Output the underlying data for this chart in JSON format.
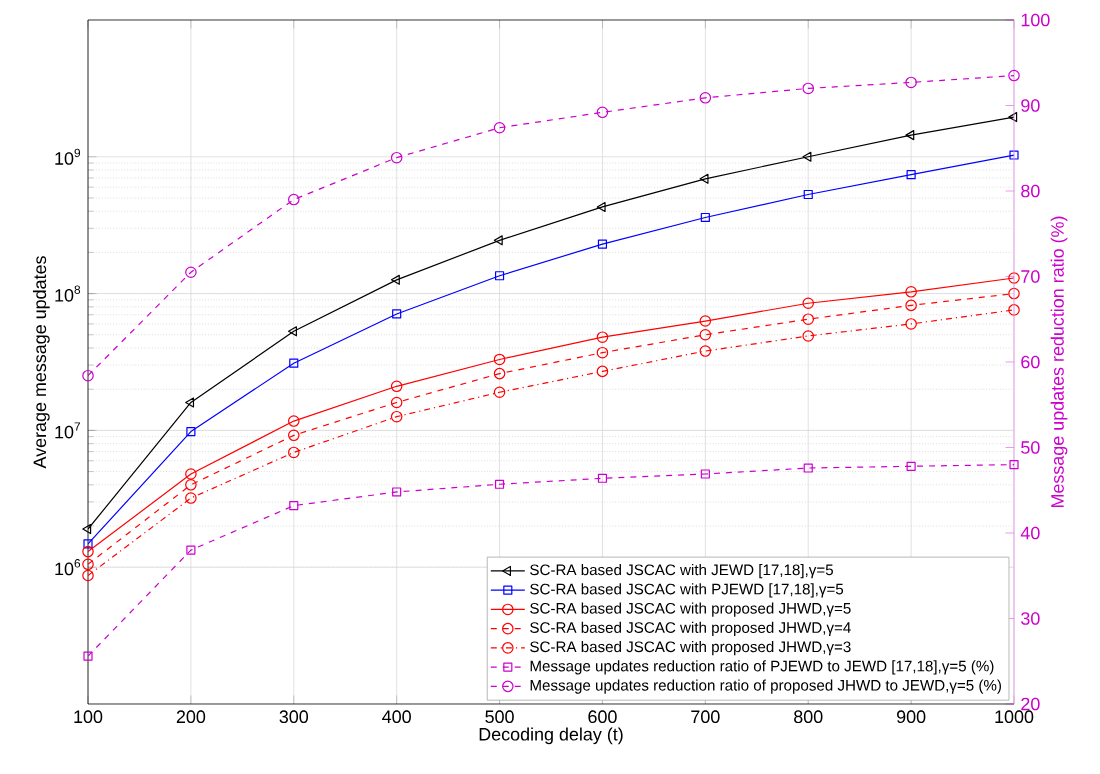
{
  "chart_data": {
    "type": "line",
    "xlabel": "Decoding delay (t)",
    "ylabel": "Average message updates",
    "y2label": "Message updates reduction ratio (%)",
    "x": [
      100,
      200,
      300,
      400,
      500,
      600,
      700,
      800,
      900,
      1000
    ],
    "xlim": [
      100,
      1000
    ],
    "xticks": [
      100,
      200,
      300,
      400,
      500,
      600,
      700,
      800,
      900,
      1000
    ],
    "log": "y",
    "ylim": [
      100000,
      10000000000
    ],
    "yticks": [
      {
        "value": 1000000,
        "label": "10$^{6}$"
      },
      {
        "value": 10000000,
        "label": "10$^{7}$"
      },
      {
        "value": 100000000,
        "label": "10$^{8}$"
      },
      {
        "value": 1000000000,
        "label": "10$^{9}$"
      }
    ],
    "y2lim": [
      20,
      100
    ],
    "y2ticks": [
      20,
      30,
      40,
      50,
      60,
      70,
      80,
      90,
      100
    ],
    "grid": true,
    "legend": "bottom right",
    "series": [
      {
        "name": "SC-RA based JSCAC with JEWD [17,18],γ=5",
        "color": "#000000",
        "marker": "triangle",
        "line_style": "solid",
        "values": [
          1900000,
          16000000,
          53000000,
          126000000,
          245000000,
          430000000,
          690000000,
          1000000000,
          1440000000,
          1950000000
        ]
      },
      {
        "name": "SC-RA based JSCAC with PJEWD [17,18],γ=5",
        "color": "#0000ff",
        "marker": "square",
        "line_style": "solid",
        "values": [
          1480000,
          9800000,
          31000000,
          71000000,
          135000000,
          230000000,
          360000000,
          530000000,
          740000000,
          1030000000
        ]
      },
      {
        "name": "SC-RA based JSCAC with proposed JHWD,γ=5",
        "color": "#ff0000",
        "marker": "circle",
        "line_style": "solid",
        "values": [
          1300000,
          4800000,
          11700000,
          21000000,
          33000000,
          48000000,
          63000000,
          85000000,
          103000000,
          130000000
        ]
      },
      {
        "name": "SC-RA based JSCAC with proposed JHWD,γ=4",
        "color": "#ff0000",
        "marker": "circle",
        "line_style": "dashed",
        "values": [
          1050000,
          4000000,
          9200000,
          16000000,
          26000000,
          37000000,
          50000000,
          65000000,
          82000000,
          100000000
        ]
      },
      {
        "name": "SC-RA based JSCAC with proposed JHWD,γ=3",
        "color": "#ff0000",
        "marker": "circle",
        "line_style": "dashdot",
        "values": [
          870000,
          3200000,
          6900000,
          12600000,
          19000000,
          27000000,
          38000000,
          49000000,
          60000000,
          76000000
        ]
      },
      {
        "name": "Message updates reduction ratio of PJEWD to JEWD [17,18],γ=5 (%)",
        "color": "#cc00cc",
        "marker": "square",
        "line_style": "dashed",
        "axis": "y2",
        "values": [
          25.6,
          38.0,
          43.2,
          44.8,
          45.7,
          46.4,
          46.9,
          47.6,
          47.8,
          48.0
        ]
      },
      {
        "name": "Message updates reduction ratio of proposed JHWD to JEWD,γ=5 (%)",
        "color": "#cc00cc",
        "marker": "circle",
        "line_style": "dashed",
        "axis": "y2",
        "values": [
          58.4,
          70.5,
          79.0,
          83.9,
          87.4,
          89.2,
          90.9,
          92.0,
          92.7,
          93.5
        ]
      }
    ]
  }
}
